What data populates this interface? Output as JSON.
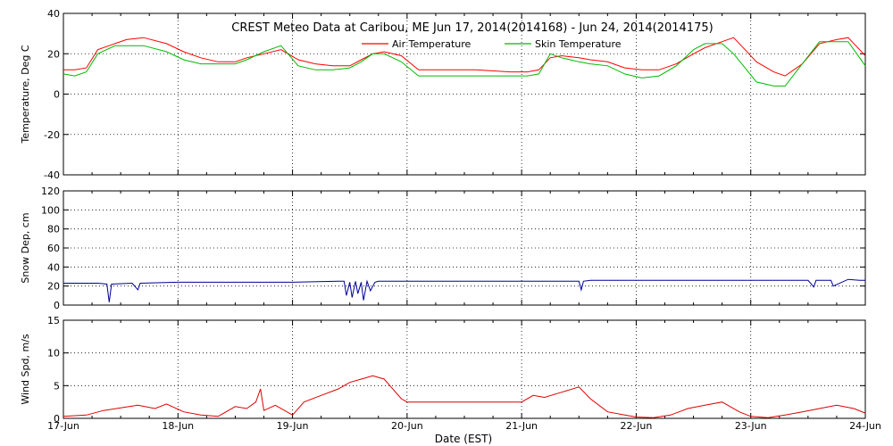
{
  "chart_data": [
    {
      "type": "line",
      "title": "CREST Meteo Data at Caribou, ME   Jun 17, 2014(2014168) - Jun 24, 2014(2014175)",
      "xlabel": "",
      "ylabel": "Temperature, Deg C",
      "xlim": [
        0,
        7
      ],
      "ylim": [
        -40,
        40
      ],
      "yticks": [
        -40,
        -20,
        0,
        20,
        40
      ],
      "grid": true,
      "legend": "top-center",
      "series": [
        {
          "name": "Air Temperature",
          "color": "#ff0000",
          "x": [
            0,
            0.1,
            0.2,
            0.3,
            0.45,
            0.55,
            0.7,
            0.9,
            1.05,
            1.2,
            1.35,
            1.5,
            1.6,
            1.75,
            1.9,
            2.05,
            2.2,
            2.35,
            2.5,
            2.6,
            2.7,
            2.8,
            2.95,
            3.1,
            3.3,
            3.6,
            3.9,
            4.05,
            4.15,
            4.25,
            4.35,
            4.5,
            4.6,
            4.75,
            4.9,
            5.05,
            5.2,
            5.35,
            5.5,
            5.6,
            5.75,
            5.85,
            5.95,
            6.05,
            6.2,
            6.3,
            6.45,
            6.6,
            6.75,
            6.85,
            6.95,
            7.0
          ],
          "values": [
            12,
            12,
            13,
            22,
            25,
            27,
            28,
            25,
            21,
            18,
            16,
            16,
            18,
            20,
            22,
            17,
            15,
            14,
            14,
            17,
            20,
            21,
            19,
            12,
            12,
            12,
            11,
            11,
            12,
            18,
            19,
            18,
            17,
            16,
            13,
            12,
            12,
            15,
            20,
            23,
            26,
            28,
            22,
            16,
            11,
            9,
            15,
            25,
            27,
            28,
            22,
            19
          ]
        },
        {
          "name": "Skin Temperature",
          "color": "#00bb00",
          "x": [
            0,
            0.1,
            0.2,
            0.3,
            0.45,
            0.55,
            0.7,
            0.9,
            1.05,
            1.2,
            1.35,
            1.5,
            1.6,
            1.75,
            1.9,
            2.05,
            2.2,
            2.35,
            2.5,
            2.6,
            2.7,
            2.8,
            2.95,
            3.1,
            3.3,
            3.6,
            3.9,
            4.05,
            4.15,
            4.25,
            4.35,
            4.5,
            4.6,
            4.75,
            4.9,
            5.05,
            5.2,
            5.35,
            5.5,
            5.6,
            5.75,
            5.85,
            5.95,
            6.05,
            6.2,
            6.3,
            6.45,
            6.6,
            6.75,
            6.85,
            6.95,
            7.0
          ],
          "values": [
            10,
            9,
            11,
            20,
            24,
            24,
            24,
            21,
            17,
            15,
            15,
            15,
            17,
            21,
            24,
            14,
            12,
            12,
            13,
            16,
            20,
            20,
            16,
            9,
            9,
            9,
            9,
            9,
            10,
            20,
            18,
            16,
            15,
            14,
            10,
            8,
            9,
            14,
            22,
            25,
            25,
            20,
            13,
            6,
            4,
            4,
            15,
            26,
            26,
            26,
            18,
            14
          ]
        }
      ]
    },
    {
      "type": "line",
      "title": "",
      "xlabel": "",
      "ylabel": "Snow Dep, cm",
      "xlim": [
        0,
        7
      ],
      "ylim": [
        0,
        120
      ],
      "yticks": [
        0,
        20,
        40,
        60,
        80,
        100,
        120
      ],
      "grid": true,
      "series": [
        {
          "color": "#000099",
          "x": [
            0,
            0.3,
            0.38,
            0.4,
            0.42,
            0.6,
            0.65,
            0.67,
            1.0,
            1.5,
            2.0,
            2.4,
            2.45,
            2.47,
            2.5,
            2.52,
            2.55,
            2.57,
            2.6,
            2.62,
            2.65,
            2.68,
            2.72,
            2.75,
            2.9,
            3.5,
            4.0,
            4.5,
            4.52,
            4.54,
            4.6,
            5.0,
            5.5,
            6.0,
            6.5,
            6.55,
            6.57,
            6.7,
            6.72,
            6.85,
            6.95,
            7.0
          ],
          "values": [
            23,
            23,
            22,
            3,
            22,
            23,
            16,
            23,
            24,
            24,
            24,
            25,
            25,
            10,
            24,
            8,
            25,
            12,
            24,
            5,
            25,
            15,
            24,
            25,
            25,
            25,
            25,
            25,
            16,
            25,
            26,
            26,
            26,
            26,
            26,
            19,
            26,
            26,
            20,
            27,
            26,
            26
          ]
        }
      ]
    },
    {
      "type": "line",
      "title": "",
      "xlabel": "Date (EST)",
      "ylabel": "Wind Spd, m/s",
      "xlim": [
        0,
        7
      ],
      "ylim": [
        0,
        15
      ],
      "yticks": [
        0,
        5,
        10,
        15
      ],
      "xtick_labels": [
        "17-Jun",
        "18-Jun",
        "19-Jun",
        "20-Jun",
        "21-Jun",
        "22-Jun",
        "23-Jun",
        "24-Jun"
      ],
      "grid": true,
      "series": [
        {
          "color": "#dd0000",
          "x": [
            0,
            0.2,
            0.35,
            0.5,
            0.65,
            0.8,
            0.9,
            1.05,
            1.2,
            1.35,
            1.5,
            1.6,
            1.68,
            1.72,
            1.75,
            1.85,
            2.0,
            2.1,
            2.25,
            2.4,
            2.5,
            2.6,
            2.7,
            2.8,
            2.85,
            2.95,
            3.0,
            3.5,
            4.0,
            4.1,
            4.2,
            4.35,
            4.5,
            4.6,
            4.75,
            4.9,
            5.0,
            5.15,
            5.3,
            5.45,
            5.6,
            5.75,
            5.9,
            6.0,
            6.15,
            6.3,
            6.45,
            6.6,
            6.75,
            6.9,
            7.0
          ],
          "values": [
            0.3,
            0.5,
            1.2,
            1.6,
            2.0,
            1.5,
            2.2,
            1.0,
            0.5,
            0.3,
            1.8,
            1.5,
            2.5,
            4.5,
            1.2,
            2.0,
            0.5,
            2.5,
            3.5,
            4.5,
            5.5,
            6.0,
            6.5,
            6.0,
            5.0,
            3.0,
            2.5,
            2.5,
            2.5,
            3.5,
            3.2,
            4.0,
            4.8,
            3.0,
            1.0,
            0.5,
            0.2,
            0.1,
            0.5,
            1.5,
            2.0,
            2.5,
            1.0,
            0.3,
            0.1,
            0.5,
            1.0,
            1.5,
            2.0,
            1.5,
            0.8
          ]
        }
      ]
    }
  ]
}
